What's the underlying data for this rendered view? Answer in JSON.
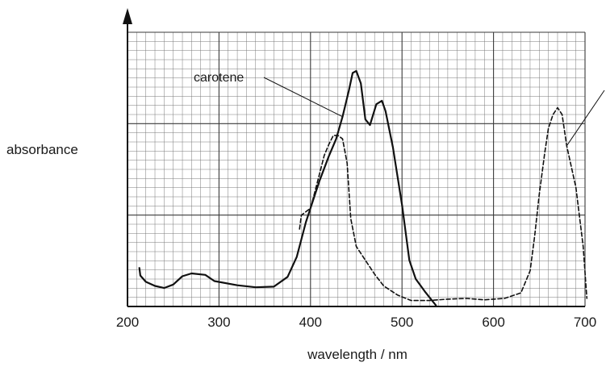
{
  "chart_data": {
    "type": "line",
    "xlabel": "wavelength / nm",
    "ylabel": "absorbance",
    "xlim": [
      200,
      700
    ],
    "x_ticks": [
      200,
      300,
      400,
      500,
      600,
      700
    ],
    "grid": true,
    "legend": "none",
    "annotations": [
      {
        "text": "carotene",
        "series_index": 0,
        "target_x": 432
      }
    ],
    "series": [
      {
        "style": "solid",
        "points": [
          [
            213,
            0.44
          ],
          [
            214,
            0.33
          ],
          [
            220,
            0.24
          ],
          [
            230,
            0.18
          ],
          [
            240,
            0.15
          ],
          [
            250,
            0.2
          ],
          [
            260,
            0.32
          ],
          [
            270,
            0.36
          ],
          [
            285,
            0.34
          ],
          [
            295,
            0.25
          ],
          [
            320,
            0.19
          ],
          [
            340,
            0.16
          ],
          [
            360,
            0.17
          ],
          [
            375,
            0.31
          ],
          [
            385,
            0.6
          ],
          [
            395,
            1.1
          ],
          [
            410,
            1.7
          ],
          [
            420,
            2.05
          ],
          [
            428,
            2.3
          ],
          [
            435,
            2.62
          ],
          [
            442,
            3.0
          ],
          [
            446,
            3.25
          ],
          [
            450,
            3.28
          ],
          [
            455,
            3.1
          ],
          [
            460,
            2.58
          ],
          [
            465,
            2.5
          ],
          [
            472,
            2.8
          ],
          [
            478,
            2.85
          ],
          [
            482,
            2.7
          ],
          [
            490,
            2.18
          ],
          [
            500,
            1.35
          ],
          [
            508,
            0.55
          ],
          [
            515,
            0.28
          ],
          [
            525,
            0.1
          ],
          [
            537,
            -0.1
          ]
        ]
      },
      {
        "style": "dashed",
        "points": [
          [
            388,
            1.0
          ],
          [
            390,
            1.2
          ],
          [
            395,
            1.25
          ],
          [
            400,
            1.3
          ],
          [
            405,
            1.55
          ],
          [
            410,
            1.8
          ],
          [
            415,
            2.06
          ],
          [
            420,
            2.22
          ],
          [
            425,
            2.35
          ],
          [
            430,
            2.35
          ],
          [
            435,
            2.3
          ],
          [
            440,
            1.95
          ],
          [
            444,
            1.15
          ],
          [
            450,
            0.75
          ],
          [
            460,
            0.55
          ],
          [
            470,
            0.35
          ],
          [
            480,
            0.18
          ],
          [
            495,
            0.05
          ],
          [
            510,
            -0.03
          ],
          [
            530,
            -0.03
          ],
          [
            550,
            -0.01
          ],
          [
            570,
            0.0
          ],
          [
            590,
            -0.02
          ],
          [
            612,
            0.0
          ],
          [
            630,
            0.08
          ],
          [
            640,
            0.4
          ],
          [
            645,
            0.9
          ],
          [
            650,
            1.5
          ],
          [
            656,
            2.1
          ],
          [
            660,
            2.45
          ],
          [
            665,
            2.65
          ],
          [
            670,
            2.75
          ],
          [
            675,
            2.65
          ],
          [
            680,
            2.2
          ],
          [
            690,
            1.6
          ],
          [
            698,
            0.75
          ],
          [
            702,
            0.0
          ]
        ]
      }
    ]
  }
}
